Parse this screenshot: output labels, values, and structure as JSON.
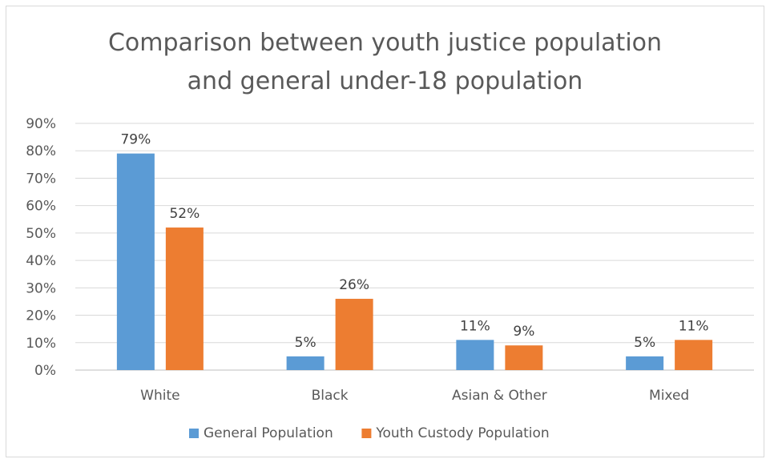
{
  "chart_data": {
    "type": "bar",
    "title_line1": "Comparison between youth justice population",
    "title_line2": "and general under-18 population",
    "categories": [
      "White",
      "Black",
      "Asian & Other",
      "Mixed"
    ],
    "series": [
      {
        "name": "General Population",
        "color": "#5b9bd5",
        "values": [
          79,
          5,
          11,
          5
        ],
        "labels": [
          "79%",
          "5%",
          "11%",
          "5%"
        ]
      },
      {
        "name": "Youth Custody Population",
        "color": "#ed7d31",
        "values": [
          52,
          26,
          9,
          11
        ],
        "labels": [
          "52%",
          "26%",
          "9%",
          "11%"
        ]
      }
    ],
    "ylim": [
      0,
      90
    ],
    "yticks": [
      "0%",
      "10%",
      "20%",
      "30%",
      "40%",
      "50%",
      "60%",
      "70%",
      "80%",
      "90%"
    ],
    "grid": true,
    "legend_position": "bottom"
  }
}
